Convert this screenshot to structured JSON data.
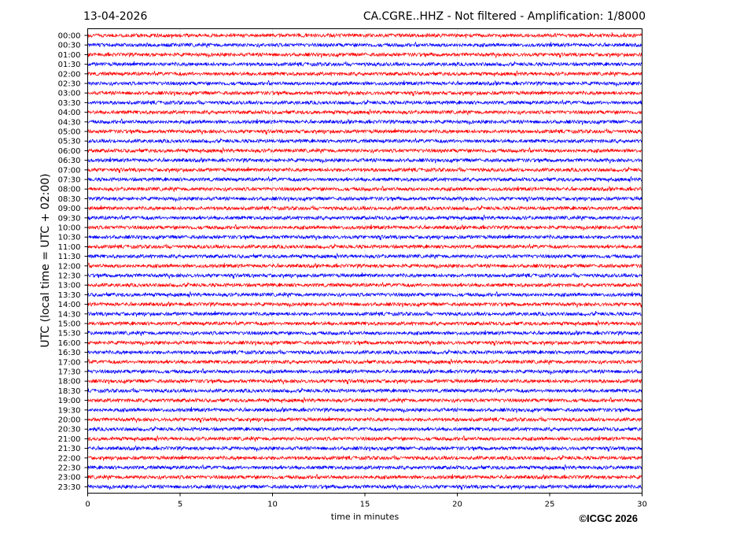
{
  "chart_data": {
    "type": "line",
    "title_left": "13-04-2026",
    "title_right": "CA.CGRE..HHZ - Not filtered - Amplification: 1/8000",
    "xlabel": "time in minutes",
    "ylabel": "UTC (local time = UTC + 02:00)",
    "xlim": [
      0,
      30
    ],
    "x_ticks": [
      0,
      5,
      10,
      15,
      20,
      25,
      30
    ],
    "grid": "vertical dotted lines at each x tick",
    "series_colors": [
      "#ff0000",
      "#0000ff"
    ],
    "rows": [
      "00:00",
      "00:30",
      "01:00",
      "01:30",
      "02:00",
      "02:30",
      "03:00",
      "03:30",
      "04:00",
      "04:30",
      "05:00",
      "05:30",
      "06:00",
      "06:30",
      "07:00",
      "07:30",
      "08:00",
      "08:30",
      "09:00",
      "09:30",
      "10:00",
      "10:30",
      "11:00",
      "11:30",
      "12:00",
      "12:30",
      "13:00",
      "13:30",
      "14:00",
      "14:30",
      "15:00",
      "15:30",
      "16:00",
      "16:30",
      "17:00",
      "17:30",
      "18:00",
      "18:30",
      "19:00",
      "19:30",
      "20:00",
      "20:30",
      "21:00",
      "21:30",
      "22:00",
      "22:30",
      "23:00",
      "23:30"
    ],
    "row_period_minutes": 30
  },
  "footer": {
    "copyright": "©ICGC 2026"
  }
}
